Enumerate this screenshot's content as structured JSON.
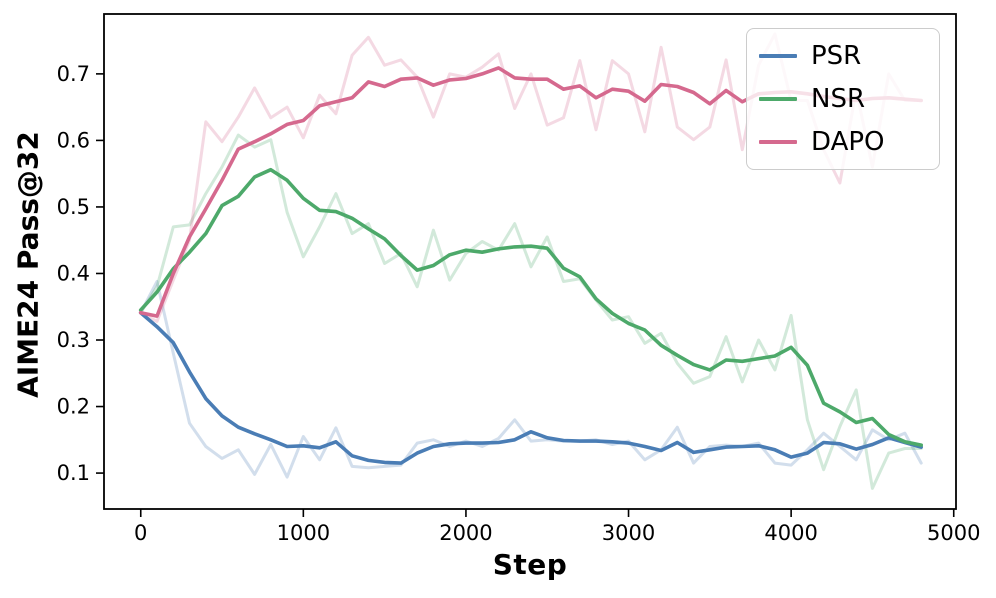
{
  "figure": {
    "background": "#ffffff",
    "xlabel": "Step",
    "ylabel": "AIME24 Pass@32"
  },
  "legend": {
    "position": "upper right",
    "items": [
      {
        "label": "PSR",
        "color": "#4A7DB5"
      },
      {
        "label": "NSR",
        "color": "#4DA96A"
      },
      {
        "label": "DAPO",
        "color": "#D5698E"
      }
    ]
  },
  "chart_data": {
    "type": "line",
    "title": "",
    "xlabel": "Step",
    "ylabel": "AIME24 Pass@32",
    "grid": false,
    "legend_position": "upper right",
    "x_ticks": [
      0,
      1000,
      2000,
      3000,
      4000,
      5000
    ],
    "y_ticks": [
      0.1,
      0.2,
      0.3,
      0.4,
      0.5,
      0.6,
      0.7
    ],
    "xlim": [
      -226,
      5014
    ],
    "ylim": [
      0.046,
      0.79
    ],
    "x": [
      0,
      100,
      200,
      300,
      400,
      500,
      600,
      700,
      800,
      900,
      1000,
      1100,
      1200,
      1300,
      1400,
      1500,
      1600,
      1700,
      1800,
      1900,
      2000,
      2100,
      2200,
      2300,
      2400,
      2500,
      2600,
      2700,
      2800,
      2900,
      3000,
      3100,
      3200,
      3300,
      3400,
      3500,
      3600,
      3700,
      3800,
      3900,
      4000,
      4100,
      4200,
      4300,
      4400,
      4500,
      4600,
      4700,
      4800
    ],
    "series": [
      {
        "name": "PSR (raw)",
        "color": "#4A7DB5",
        "style": "raw",
        "opacity": 0.25,
        "width": 3,
        "values": [
          0.341,
          0.388,
          0.28,
          0.175,
          0.14,
          0.122,
          0.135,
          0.098,
          0.143,
          0.094,
          0.155,
          0.12,
          0.168,
          0.11,
          0.108,
          0.11,
          0.112,
          0.145,
          0.15,
          0.14,
          0.148,
          0.14,
          0.152,
          0.18,
          0.148,
          0.15,
          0.148,
          0.148,
          0.15,
          0.143,
          0.148,
          0.12,
          0.135,
          0.169,
          0.115,
          0.14,
          0.142,
          0.14,
          0.145,
          0.115,
          0.112,
          0.135,
          0.16,
          0.14,
          0.12,
          0.165,
          0.15,
          0.16,
          0.115
        ]
      },
      {
        "name": "NSR (raw)",
        "color": "#4DA96A",
        "style": "raw",
        "opacity": 0.25,
        "width": 3,
        "values": [
          0.341,
          0.38,
          0.47,
          0.473,
          0.52,
          0.56,
          0.608,
          0.59,
          0.601,
          0.492,
          0.425,
          0.47,
          0.52,
          0.46,
          0.475,
          0.415,
          0.43,
          0.38,
          0.465,
          0.39,
          0.43,
          0.448,
          0.435,
          0.475,
          0.41,
          0.455,
          0.388,
          0.392,
          0.36,
          0.33,
          0.335,
          0.295,
          0.31,
          0.265,
          0.235,
          0.245,
          0.305,
          0.237,
          0.3,
          0.255,
          0.337,
          0.18,
          0.105,
          0.17,
          0.225,
          0.077,
          0.13,
          0.137,
          0.137
        ]
      },
      {
        "name": "DAPO (raw)",
        "color": "#D5698E",
        "style": "raw",
        "opacity": 0.25,
        "width": 3,
        "values": [
          0.341,
          0.328,
          0.39,
          0.45,
          0.628,
          0.598,
          0.635,
          0.679,
          0.634,
          0.65,
          0.604,
          0.668,
          0.64,
          0.728,
          0.755,
          0.713,
          0.721,
          0.695,
          0.635,
          0.7,
          0.695,
          0.71,
          0.73,
          0.648,
          0.7,
          0.623,
          0.634,
          0.72,
          0.616,
          0.72,
          0.7,
          0.613,
          0.74,
          0.62,
          0.601,
          0.62,
          0.721,
          0.586,
          0.713,
          0.76,
          0.66,
          0.66,
          0.586,
          0.536,
          0.676,
          0.56,
          0.7,
          0.66,
          0.66
        ]
      },
      {
        "name": "PSR",
        "color": "#4A7DB5",
        "style": "smoothed",
        "opacity": 1,
        "width": 3.6,
        "values": [
          0.341,
          0.32,
          0.296,
          0.252,
          0.212,
          0.186,
          0.169,
          0.159,
          0.15,
          0.14,
          0.141,
          0.138,
          0.147,
          0.126,
          0.119,
          0.116,
          0.115,
          0.13,
          0.14,
          0.144,
          0.145,
          0.145,
          0.146,
          0.15,
          0.162,
          0.153,
          0.149,
          0.148,
          0.148,
          0.147,
          0.145,
          0.14,
          0.134,
          0.146,
          0.131,
          0.135,
          0.139,
          0.14,
          0.141,
          0.135,
          0.124,
          0.13,
          0.146,
          0.144,
          0.136,
          0.143,
          0.153,
          0.146,
          0.139
        ]
      },
      {
        "name": "NSR",
        "color": "#4DA96A",
        "style": "smoothed",
        "opacity": 1,
        "width": 3.6,
        "values": [
          0.345,
          0.372,
          0.407,
          0.432,
          0.46,
          0.502,
          0.516,
          0.545,
          0.556,
          0.54,
          0.513,
          0.495,
          0.493,
          0.483,
          0.467,
          0.452,
          0.427,
          0.405,
          0.412,
          0.428,
          0.435,
          0.432,
          0.437,
          0.44,
          0.441,
          0.438,
          0.408,
          0.395,
          0.362,
          0.34,
          0.325,
          0.315,
          0.292,
          0.277,
          0.263,
          0.255,
          0.27,
          0.268,
          0.272,
          0.276,
          0.289,
          0.262,
          0.205,
          0.192,
          0.176,
          0.182,
          0.158,
          0.147,
          0.142
        ]
      },
      {
        "name": "DAPO",
        "color": "#D5698E",
        "style": "smoothed",
        "opacity": 1,
        "width": 3.6,
        "values": [
          0.341,
          0.336,
          0.4,
          0.455,
          0.497,
          0.54,
          0.587,
          0.598,
          0.61,
          0.624,
          0.63,
          0.652,
          0.658,
          0.664,
          0.688,
          0.681,
          0.692,
          0.694,
          0.683,
          0.691,
          0.693,
          0.7,
          0.709,
          0.694,
          0.692,
          0.692,
          0.677,
          0.682,
          0.664,
          0.677,
          0.674,
          0.659,
          0.684,
          0.681,
          0.672,
          0.655,
          0.675,
          0.658,
          0.67,
          0.672,
          0.673,
          0.67,
          0.666,
          0.663,
          0.66,
          0.663,
          0.664,
          0.662,
          0.66
        ]
      }
    ]
  }
}
